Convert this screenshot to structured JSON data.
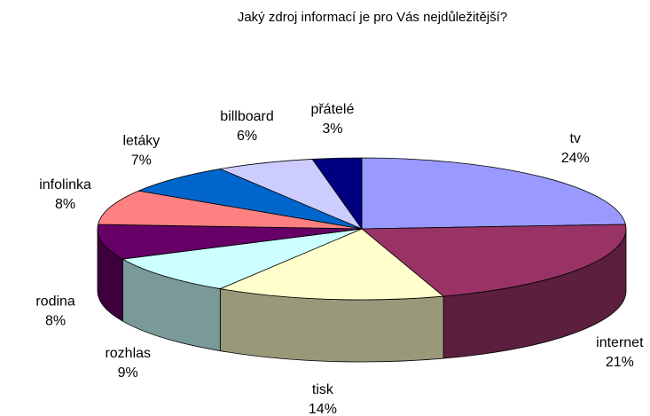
{
  "chart_data": {
    "type": "pie3d",
    "title": "Jaký zdroj informací je pro Vás nejdůležitější?",
    "categories": [
      "tv",
      "internet",
      "tisk",
      "rozhlas",
      "rodina",
      "infolinka",
      "letáky",
      "billboard",
      "přátelé"
    ],
    "values": [
      24,
      21,
      14,
      9,
      8,
      8,
      7,
      6,
      3
    ],
    "value_labels": [
      "24%",
      "21%",
      "14%",
      "9%",
      "8%",
      "8%",
      "7%",
      "6%",
      "3%"
    ],
    "colors": [
      "#9999ff",
      "#993366",
      "#ffffcc",
      "#ccffff",
      "#660066",
      "#ff8080",
      "#0066cc",
      "#ccccff",
      "#000080"
    ]
  }
}
